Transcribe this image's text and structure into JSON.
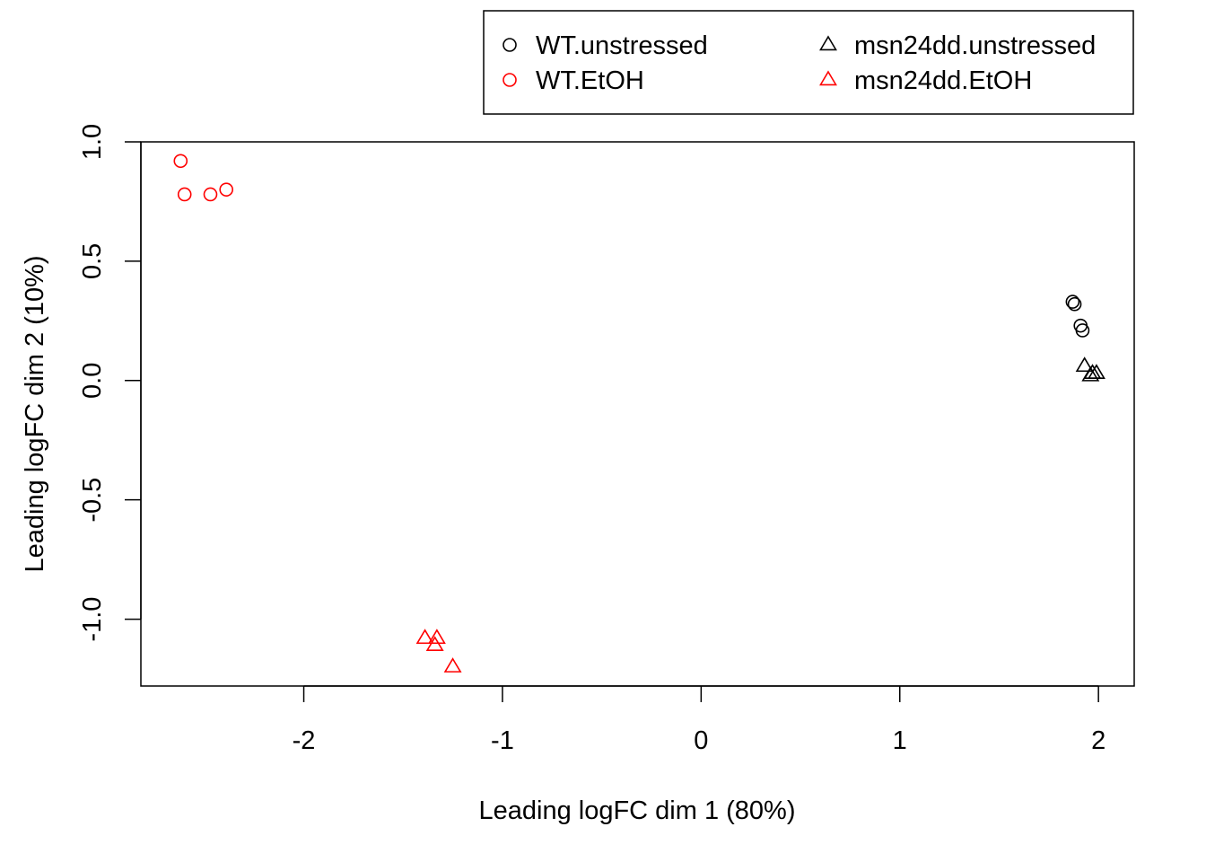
{
  "chart_data": {
    "type": "scatter",
    "xlabel": "Leading logFC dim 1 (80%)",
    "ylabel": "Leading logFC dim 2 (10%)",
    "xlim": [
      -2.82,
      2.18
    ],
    "ylim": [
      -1.28,
      1.0
    ],
    "x_ticks": [
      -2,
      -1,
      0,
      1,
      2
    ],
    "x_tick_labels": [
      "-2",
      "-1",
      "0",
      "1",
      "2"
    ],
    "y_ticks": [
      -1.0,
      -0.5,
      0.0,
      0.5,
      1.0
    ],
    "y_tick_labels": [
      "-1.0",
      "-0.5",
      "0.0",
      "0.5",
      "1.0"
    ],
    "grid": false,
    "legend_position": "top-right, above plot",
    "series": [
      {
        "name": "WT.unstressed",
        "marker": "circle",
        "color": "#000000",
        "points": [
          [
            1.87,
            0.33
          ],
          [
            1.88,
            0.32
          ],
          [
            1.91,
            0.23
          ],
          [
            1.92,
            0.21
          ]
        ]
      },
      {
        "name": "WT.EtOH",
        "marker": "circle",
        "color": "#ff0000",
        "points": [
          [
            -2.62,
            0.92
          ],
          [
            -2.6,
            0.78
          ],
          [
            -2.47,
            0.78
          ],
          [
            -2.39,
            0.8
          ]
        ]
      },
      {
        "name": "msn24dd.unstressed",
        "marker": "triangle",
        "color": "#000000",
        "points": [
          [
            1.93,
            0.06
          ],
          [
            1.96,
            0.02
          ],
          [
            1.97,
            0.03
          ],
          [
            1.99,
            0.03
          ]
        ]
      },
      {
        "name": "msn24dd.EtOH",
        "marker": "triangle",
        "color": "#ff0000",
        "points": [
          [
            -1.39,
            -1.08
          ],
          [
            -1.33,
            -1.08
          ],
          [
            -1.34,
            -1.11
          ],
          [
            -1.25,
            -1.2
          ]
        ]
      }
    ]
  }
}
